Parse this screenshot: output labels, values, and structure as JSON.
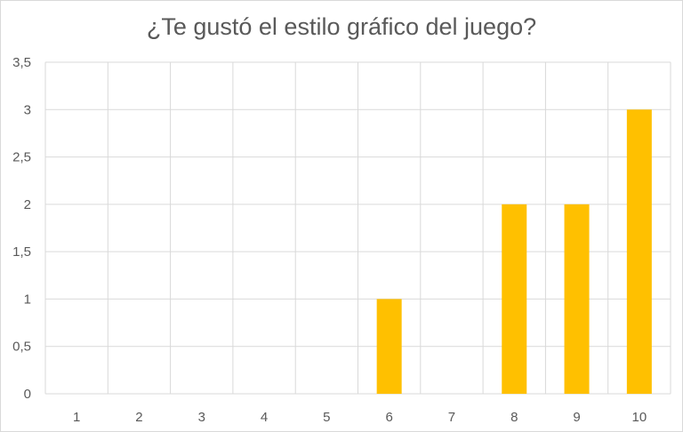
{
  "chart_data": {
    "type": "bar",
    "title": "¿Te gustó el estilo gráfico del juego?",
    "xlabel": "",
    "ylabel": "",
    "categories": [
      "1",
      "2",
      "3",
      "4",
      "5",
      "6",
      "7",
      "8",
      "9",
      "10"
    ],
    "values": [
      0,
      0,
      0,
      0,
      0,
      1,
      0,
      2,
      2,
      3
    ],
    "ylim": [
      0,
      3.5
    ],
    "yticks": [
      "0",
      "0,5",
      "1",
      "1,5",
      "2",
      "2,5",
      "3",
      "3,5"
    ],
    "grid": true,
    "legend": "none",
    "bar_color": "#FFC000",
    "grid_color": "#d9d9d9"
  }
}
